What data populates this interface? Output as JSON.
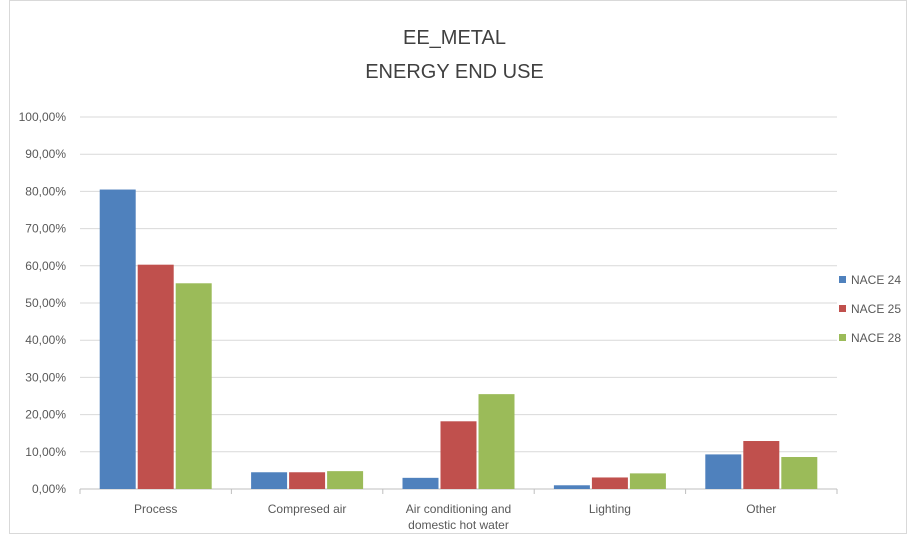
{
  "chart_data": {
    "type": "bar",
    "title": [
      "EE_METAL",
      "ENERGY END USE"
    ],
    "categories": [
      [
        "Process"
      ],
      [
        "Compresed air"
      ],
      [
        "Air conditioning and",
        "domestic hot water"
      ],
      [
        "Lighting"
      ],
      [
        "Other"
      ]
    ],
    "series": [
      {
        "name": "NACE 24",
        "color": "#4f81bd",
        "values": [
          0.805,
          0.045,
          0.03,
          0.01,
          0.093
        ]
      },
      {
        "name": "NACE 25",
        "color": "#c0504d",
        "values": [
          0.603,
          0.045,
          0.182,
          0.031,
          0.129
        ]
      },
      {
        "name": "NACE 28",
        "color": "#9bbb59",
        "values": [
          0.553,
          0.048,
          0.255,
          0.042,
          0.086
        ]
      }
    ],
    "ylim": [
      0,
      1
    ],
    "yticks": [
      0,
      0.1,
      0.2,
      0.3,
      0.4,
      0.5,
      0.6,
      0.7,
      0.8,
      0.9,
      1.0
    ],
    "ytick_labels": [
      "0,00%",
      "10,00%",
      "20,00%",
      "30,00%",
      "40,00%",
      "50,00%",
      "60,00%",
      "70,00%",
      "80,00%",
      "90,00%",
      "100,00%"
    ],
    "grid": true,
    "legend_position": "right",
    "xlabel": "",
    "ylabel": ""
  }
}
